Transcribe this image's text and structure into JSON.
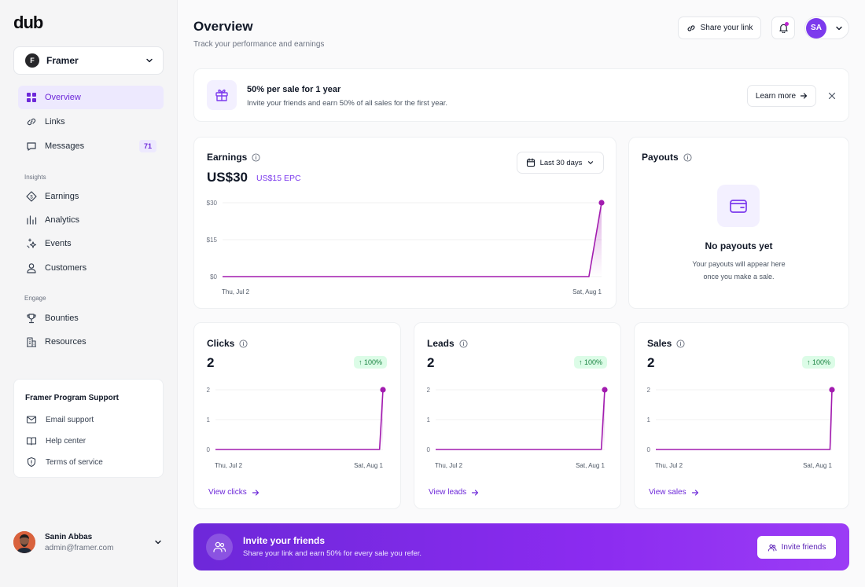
{
  "sidebar": {
    "logo": "dub",
    "workspace": {
      "initial": "F",
      "name": "Framer"
    },
    "main_items": [
      {
        "label": "Overview",
        "icon": "grid-icon",
        "active": true
      },
      {
        "label": "Links",
        "icon": "link-icon"
      },
      {
        "label": "Messages",
        "icon": "message-icon",
        "badge": "71"
      }
    ],
    "insights_label": "Insights",
    "insights_items": [
      {
        "label": "Earnings",
        "icon": "dollar-icon"
      },
      {
        "label": "Analytics",
        "icon": "bar-chart-icon"
      },
      {
        "label": "Events",
        "icon": "sparkle-icon"
      },
      {
        "label": "Customers",
        "icon": "user-icon"
      }
    ],
    "engage_label": "Engage",
    "engage_items": [
      {
        "label": "Bounties",
        "icon": "trophy-icon"
      },
      {
        "label": "Resources",
        "icon": "building-icon"
      }
    ],
    "support": {
      "title": "Framer Program Support",
      "items": [
        {
          "label": "Email support",
          "icon": "mail-icon"
        },
        {
          "label": "Help center",
          "icon": "book-icon"
        },
        {
          "label": "Terms of service",
          "icon": "shield-icon"
        }
      ]
    },
    "user": {
      "name": "Sanin Abbas",
      "email": "admin@framer.com"
    }
  },
  "header": {
    "title": "Overview",
    "subtitle": "Track your performance and earnings",
    "share_label": "Share your link",
    "account_initials": "SA"
  },
  "promo": {
    "title": "50% per sale for 1 year",
    "description": "Invite your friends and earn 50% of all sales for the first year.",
    "button_label": "Learn more"
  },
  "earnings": {
    "title": "Earnings",
    "value": "US$30",
    "epc": "US$15 EPC",
    "range_label": "Last 30 days"
  },
  "payouts": {
    "title": "Payouts",
    "empty_title": "No payouts yet",
    "empty_line1": "Your payouts will appear here",
    "empty_line2": "once you make a sale."
  },
  "stats": [
    {
      "title": "Clicks",
      "value": "2",
      "change": "100%",
      "link": "View clicks"
    },
    {
      "title": "Leads",
      "value": "2",
      "change": "100%",
      "link": "View leads"
    },
    {
      "title": "Sales",
      "value": "2",
      "change": "100%",
      "link": "View sales"
    }
  ],
  "invite": {
    "title": "Invite your friends",
    "description": "Share your link and earn 50% for every sale you refer.",
    "button_label": "Invite friends"
  },
  "colors": {
    "accent": "#7c3aed",
    "line": "#a21caf",
    "positive": "#15803d"
  },
  "chart_data": [
    {
      "type": "area",
      "x_start": "Thu, Jul 2",
      "x_end": "Sat, Aug 1",
      "y_ticks": [
        "$30",
        "$15",
        "$0"
      ],
      "ylim": [
        0,
        30
      ],
      "values": [
        0,
        0,
        0,
        0,
        0,
        0,
        0,
        0,
        0,
        0,
        0,
        0,
        0,
        0,
        0,
        0,
        0,
        0,
        0,
        0,
        0,
        0,
        0,
        0,
        0,
        0,
        0,
        0,
        0,
        0,
        30
      ]
    },
    {
      "type": "area",
      "x_start": "Thu, Jul 2",
      "x_end": "Sat, Aug 1",
      "y_ticks": [
        "2",
        "1",
        "0"
      ],
      "ylim": [
        0,
        2
      ],
      "values": [
        0,
        0,
        0,
        0,
        0,
        0,
        0,
        0,
        0,
        0,
        0,
        0,
        0,
        0,
        0,
        0,
        0,
        0,
        0,
        0,
        0,
        0,
        0,
        0,
        0,
        0,
        0,
        0,
        0,
        0,
        0,
        0,
        0,
        0,
        0,
        0,
        0,
        0,
        0,
        0,
        0,
        0,
        0,
        0,
        0,
        0,
        0,
        0,
        0,
        0,
        2
      ]
    },
    {
      "type": "area",
      "x_start": "Thu, Jul 2",
      "x_end": "Sat, Aug 1",
      "y_ticks": [
        "2",
        "1",
        "0"
      ],
      "ylim": [
        0,
        2
      ],
      "values": [
        0,
        0,
        0,
        0,
        0,
        0,
        0,
        0,
        0,
        0,
        0,
        0,
        0,
        0,
        0,
        0,
        0,
        0,
        0,
        0,
        0,
        0,
        0,
        0,
        0,
        0,
        0,
        0,
        0,
        0,
        0,
        0,
        0,
        0,
        0,
        0,
        0,
        0,
        0,
        0,
        0,
        0,
        0,
        0,
        0,
        0,
        0,
        0,
        0,
        0,
        2
      ]
    },
    {
      "type": "area",
      "x_start": "Thu, Jul 2",
      "x_end": "Sat, Aug 1",
      "y_ticks": [
        "2",
        "1",
        "0"
      ],
      "ylim": [
        0,
        2
      ],
      "values": [
        0,
        0,
        0,
        0,
        0,
        0,
        0,
        0,
        0,
        0,
        0,
        0,
        0,
        0,
        0,
        0,
        0,
        0,
        0,
        0,
        0,
        0,
        0,
        0,
        0,
        0,
        0,
        0,
        0,
        0,
        0,
        0,
        0,
        0,
        0,
        0,
        0,
        0,
        0,
        0,
        0,
        0,
        0,
        0,
        0,
        0,
        0,
        0,
        0,
        0,
        0,
        0,
        0,
        0,
        0,
        0,
        0,
        0,
        0,
        0,
        0,
        0,
        0,
        0,
        0,
        0,
        0,
        0,
        0,
        0,
        0,
        0,
        0,
        0,
        0,
        0,
        0,
        0,
        0,
        0,
        0,
        0,
        0,
        0,
        0,
        0,
        0,
        0,
        0,
        0,
        2
      ]
    }
  ]
}
